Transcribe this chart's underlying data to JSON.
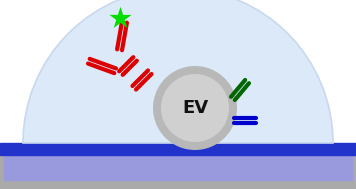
{
  "fig_width": 3.56,
  "fig_height": 1.89,
  "dpi": 100,
  "bg_color": "#ffffff",
  "dome_color": "#dce9f8",
  "dome_edge_color": "#c8d8ee",
  "base_blue_color": "#2233cc",
  "base_light_color": "#9999dd",
  "base_gray_color": "#aaaaaa",
  "ev_outer_color": "#b8b8b8",
  "ev_inner_color": "#d0d0d0",
  "ev_text": "EV",
  "ev_text_color": "#111111",
  "star_color": "#00dd00",
  "antibody_color": "#dd0000",
  "green_marker_color": "#006600",
  "blue_marker_color": "#0000cc"
}
